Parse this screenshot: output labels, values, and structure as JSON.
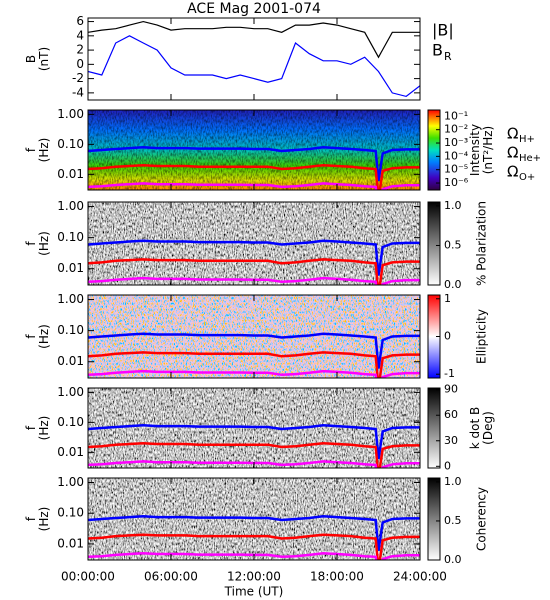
{
  "title": "ACE Mag 2001-074",
  "x_axis": {
    "label": "Time (UT)",
    "xlim": [
      0,
      24
    ],
    "xticks": [
      {
        "value": 0,
        "label": "00:00:00"
      },
      {
        "value": 6,
        "label": "06:00:00"
      },
      {
        "value": 12,
        "label": "12:00:00"
      },
      {
        "value": 18,
        "label": "18:00:00"
      },
      {
        "value": 24,
        "label": "24:00:00"
      }
    ]
  },
  "gyrofrequencies": {
    "x": [
      0,
      1,
      2,
      3,
      4,
      5,
      6,
      7,
      8,
      9,
      10,
      11,
      12,
      13,
      14,
      15,
      16,
      17,
      18,
      19,
      20,
      20.8,
      21,
      21.3,
      22,
      23,
      24
    ],
    "series": [
      {
        "label": "Ω",
        "sub": "H+",
        "color": "#0000ff",
        "values": [
          0.06,
          0.065,
          0.07,
          0.075,
          0.08,
          0.075,
          0.075,
          0.075,
          0.072,
          0.072,
          0.072,
          0.072,
          0.07,
          0.07,
          0.06,
          0.065,
          0.07,
          0.08,
          0.075,
          0.07,
          0.065,
          0.06,
          0.006,
          0.05,
          0.065,
          0.068,
          0.068
        ]
      },
      {
        "label": "Ω",
        "sub": "He+",
        "color": "#ff0000",
        "values": [
          0.015,
          0.016,
          0.018,
          0.019,
          0.02,
          0.019,
          0.019,
          0.019,
          0.018,
          0.018,
          0.018,
          0.018,
          0.018,
          0.018,
          0.015,
          0.016,
          0.018,
          0.02,
          0.019,
          0.018,
          0.016,
          0.015,
          0.0015,
          0.013,
          0.016,
          0.017,
          0.017
        ]
      },
      {
        "label": "Ω",
        "sub": "O+",
        "color": "#ff00ff",
        "values": [
          0.0038,
          0.004,
          0.0044,
          0.0047,
          0.005,
          0.0047,
          0.0047,
          0.0047,
          0.0045,
          0.0045,
          0.0045,
          0.0045,
          0.0044,
          0.0044,
          0.0038,
          0.004,
          0.0044,
          0.005,
          0.0047,
          0.0044,
          0.004,
          0.0038,
          0.0004,
          0.0032,
          0.004,
          0.0043,
          0.0043
        ]
      }
    ]
  },
  "chart_data": [
    {
      "type": "line",
      "ylabel": [
        "B",
        "(nT)"
      ],
      "ylim": [
        -5,
        6.5
      ],
      "yticks": [
        -4,
        -2,
        0,
        2,
        4,
        6
      ],
      "x": [
        0,
        1,
        2,
        3,
        4,
        5,
        6,
        7,
        8,
        9,
        10,
        11,
        12,
        13,
        14,
        15,
        16,
        17,
        18,
        19,
        20,
        21,
        22,
        23,
        24
      ],
      "series": [
        {
          "name": "|B|",
          "color": "#000000",
          "values": [
            4.5,
            4.8,
            5,
            5.5,
            6,
            5.5,
            4.8,
            5,
            5,
            5,
            5.2,
            5.2,
            5,
            5,
            4.5,
            5.5,
            5.5,
            5.8,
            5.5,
            5,
            4.5,
            1,
            4.5,
            4.5,
            4.5
          ]
        },
        {
          "name": "B",
          "sub": "R",
          "color": "#0000ff",
          "values": [
            -1,
            -1.5,
            3,
            4,
            3,
            2,
            -0.5,
            -1.5,
            -1.5,
            -1.5,
            -2,
            -1.5,
            -2,
            -2.5,
            -2,
            3,
            1.5,
            0.5,
            0.5,
            0,
            1,
            -1,
            -4,
            -4.5,
            -3
          ]
        }
      ]
    },
    {
      "type": "spectrogram",
      "ylabel": [
        "f",
        "(Hz)"
      ],
      "log_y": true,
      "ylim": [
        0.003,
        1.4
      ],
      "yticks": [
        {
          "value": 0.01,
          "label": "0.01"
        },
        {
          "value": 0.1,
          "label": "0.10"
        },
        {
          "value": 1,
          "label": "1.00"
        }
      ],
      "colormap": "rainbow",
      "colorbar_log": true,
      "colorbar_lim": [
        3e-07,
        0.3
      ],
      "colorbar_ticks": [
        {
          "value": 0.1,
          "label": "10⁻¹"
        },
        {
          "value": 0.01,
          "label": "10⁻²"
        },
        {
          "value": 0.001,
          "label": "10⁻³"
        },
        {
          "value": 0.0001,
          "label": "10⁻⁴"
        },
        {
          "value": 1e-05,
          "label": "10⁻⁵"
        },
        {
          "value": 1e-06,
          "label": "10⁻⁶"
        }
      ],
      "colorbar_label": [
        "Intensity",
        "(nT²/Hz)"
      ],
      "gyro_legend": true
    },
    {
      "type": "spectrogram",
      "ylabel": [
        "f",
        "(Hz)"
      ],
      "log_y": true,
      "ylim": [
        0.003,
        1.4
      ],
      "yticks": [
        {
          "value": 0.01,
          "label": "0.01"
        },
        {
          "value": 0.1,
          "label": "0.10"
        },
        {
          "value": 1,
          "label": "1.00"
        }
      ],
      "colormap": "gray",
      "colorbar_log": false,
      "colorbar_lim": [
        0,
        1.05
      ],
      "colorbar_ticks": [
        {
          "value": 0,
          "label": "0.0"
        },
        {
          "value": 0.5,
          "label": "0.5"
        },
        {
          "value": 1,
          "label": "1.0"
        }
      ],
      "colorbar_label": [
        "% Polarization"
      ]
    },
    {
      "type": "spectrogram",
      "ylabel": [
        "f",
        "(Hz)"
      ],
      "log_y": true,
      "ylim": [
        0.003,
        1.4
      ],
      "yticks": [
        {
          "value": 0.01,
          "label": "0.01"
        },
        {
          "value": 0.1,
          "label": "0.10"
        },
        {
          "value": 1,
          "label": "1.00"
        }
      ],
      "colormap": "bwr",
      "colorbar_log": false,
      "colorbar_lim": [
        -1.1,
        1.1
      ],
      "colorbar_ticks": [
        -1,
        0,
        1
      ],
      "colorbar_label": [
        "Ellipticity"
      ]
    },
    {
      "type": "spectrogram",
      "ylabel": [
        "f",
        "(Hz)"
      ],
      "log_y": true,
      "ylim": [
        0.003,
        1.4
      ],
      "yticks": [
        {
          "value": 0.01,
          "label": "0.01"
        },
        {
          "value": 0.1,
          "label": "0.10"
        },
        {
          "value": 1,
          "label": "1.00"
        }
      ],
      "colormap": "gray",
      "colorbar_log": false,
      "colorbar_lim": [
        -2,
        92
      ],
      "colorbar_ticks": [
        0,
        30,
        60,
        90
      ],
      "colorbar_label": [
        "k dot B",
        "(Deg)"
      ]
    },
    {
      "type": "spectrogram",
      "ylabel": [
        "f",
        "(Hz)"
      ],
      "log_y": true,
      "ylim": [
        0.003,
        1.4
      ],
      "yticks": [
        {
          "value": 0.01,
          "label": "0.01"
        },
        {
          "value": 0.1,
          "label": "0.10"
        },
        {
          "value": 1,
          "label": "1.00"
        }
      ],
      "colormap": "gray",
      "colorbar_log": false,
      "colorbar_lim": [
        0,
        1.05
      ],
      "colorbar_ticks": [
        {
          "value": 0,
          "label": "0.0"
        },
        {
          "value": 0.5,
          "label": "0.5"
        },
        {
          "value": 1,
          "label": "1.0"
        }
      ],
      "colorbar_label": [
        "Coherency"
      ]
    }
  ]
}
